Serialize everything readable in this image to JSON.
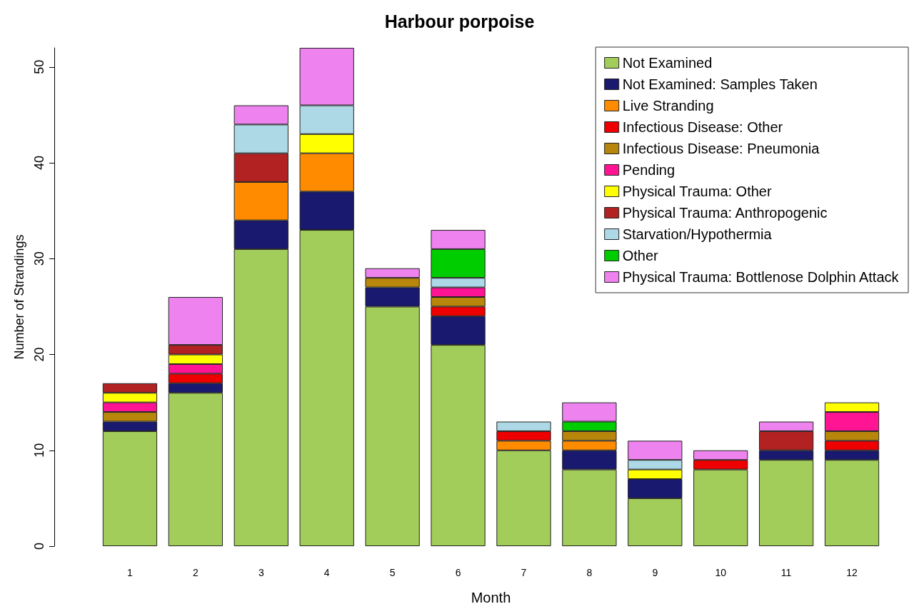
{
  "chart_data": {
    "type": "bar",
    "title": "Harbour porpoise",
    "xlabel": "Month",
    "ylabel": "Number of Strandings",
    "stacked": true,
    "categories": [
      "1",
      "2",
      "3",
      "4",
      "5",
      "6",
      "7",
      "8",
      "9",
      "10",
      "11",
      "12"
    ],
    "series": [
      {
        "name": "Not Examined",
        "color": "#a2cd5a",
        "values": [
          12,
          16,
          31,
          33,
          25,
          21,
          10,
          8,
          5,
          8,
          9,
          9
        ]
      },
      {
        "name": "Not Examined: Samples Taken",
        "color": "#191970",
        "values": [
          1,
          1,
          3,
          4,
          2,
          3,
          0,
          2,
          2,
          0,
          1,
          1
        ]
      },
      {
        "name": "Live Stranding",
        "color": "#ff8c00",
        "values": [
          0,
          0,
          4,
          4,
          0,
          0,
          1,
          1,
          0,
          0,
          0,
          0
        ]
      },
      {
        "name": "Infectious Disease: Other",
        "color": "#ee0000",
        "values": [
          0,
          1,
          0,
          0,
          0,
          1,
          1,
          0,
          0,
          1,
          0,
          1
        ]
      },
      {
        "name": "Infectious Disease: Pneumonia",
        "color": "#b8860b",
        "values": [
          1,
          0,
          0,
          0,
          1,
          1,
          0,
          1,
          0,
          0,
          0,
          1
        ]
      },
      {
        "name": "Pending",
        "color": "#ff1493",
        "values": [
          1,
          1,
          0,
          0,
          0,
          1,
          0,
          0,
          0,
          0,
          0,
          2
        ]
      },
      {
        "name": "Physical Trauma: Other",
        "color": "#ffff00",
        "values": [
          1,
          1,
          0,
          2,
          0,
          0,
          0,
          0,
          1,
          0,
          0,
          1
        ]
      },
      {
        "name": "Physical Trauma: Anthropogenic",
        "color": "#b22222",
        "values": [
          1,
          1,
          3,
          0,
          0,
          0,
          0,
          0,
          0,
          0,
          2,
          0
        ]
      },
      {
        "name": "Starvation/Hypothermia",
        "color": "#add8e6",
        "values": [
          0,
          0,
          3,
          3,
          0,
          1,
          1,
          0,
          1,
          0,
          0,
          0
        ]
      },
      {
        "name": "Other",
        "color": "#00cd00",
        "values": [
          0,
          0,
          0,
          0,
          0,
          3,
          0,
          1,
          0,
          0,
          0,
          0
        ]
      },
      {
        "name": "Physical Trauma: Bottlenose Dolphin Attack",
        "color": "#ee82ee",
        "values": [
          0,
          5,
          2,
          6,
          1,
          2,
          0,
          2,
          2,
          1,
          1,
          0
        ]
      }
    ],
    "ylim": [
      0,
      52
    ],
    "yticks": [
      0,
      10,
      20,
      30,
      40,
      50
    ],
    "grid": false,
    "legend": "top right"
  }
}
